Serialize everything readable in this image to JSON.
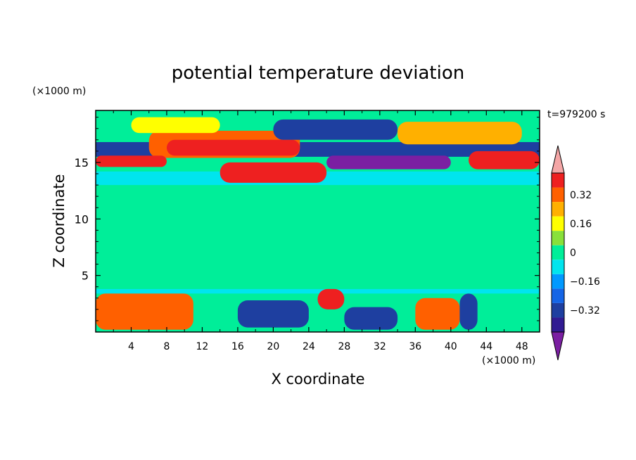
{
  "chart_data": {
    "type": "heatmap",
    "title": "potential temperature deviation",
    "xlabel": "X coordinate",
    "ylabel": "Z coordinate",
    "x_unit": "(×1000 m)",
    "y_unit": "(×1000 m)",
    "time_label": "t=979200 s",
    "xlim": [
      0,
      50
    ],
    "ylim": [
      0,
      19.6
    ],
    "x_ticks": [
      "4",
      "8",
      "12",
      "16",
      "20",
      "24",
      "28",
      "32",
      "36",
      "40",
      "44",
      "48"
    ],
    "y_ticks": [
      "5",
      "10",
      "15"
    ],
    "colorbar": {
      "levels": [
        -0.48,
        -0.4,
        -0.32,
        -0.24,
        -0.16,
        -0.08,
        0,
        0.08,
        0.16,
        0.24,
        0.32,
        0.4,
        0.48
      ],
      "tick_labels": [
        "0.32",
        "0.16",
        "0",
        "−0.16",
        "−0.32"
      ],
      "tick_values": [
        0.32,
        0.16,
        0,
        -0.16,
        -0.32
      ],
      "colors": [
        "#7b1fa2",
        "#311b92",
        "#1e3fa0",
        "#1565e6",
        "#0099ff",
        "#00e5ee",
        "#00ee99",
        "#88e03a",
        "#ffff00",
        "#ffb000",
        "#ff6000",
        "#ee2020",
        "#f4a6a6"
      ]
    },
    "field_regions": [
      {
        "x": [
          0,
          50
        ],
        "z": [
          0,
          19.6
        ],
        "value": 0.04
      },
      {
        "x": [
          0,
          50
        ],
        "z": [
          13.0,
          14.2
        ],
        "value": -0.08
      },
      {
        "x": [
          0,
          50
        ],
        "z": [
          3.4,
          3.8
        ],
        "value": -0.12
      },
      {
        "x": [
          0,
          50
        ],
        "z": [
          15.5,
          16.8
        ],
        "value": -0.28
      },
      {
        "x": [
          6,
          23
        ],
        "z": [
          15.4,
          17.8
        ],
        "value": 0.28
      },
      {
        "x": [
          0,
          8
        ],
        "z": [
          14.6,
          15.6
        ],
        "value": 0.44
      },
      {
        "x": [
          8,
          23
        ],
        "z": [
          15.6,
          17.0
        ],
        "value": 0.44
      },
      {
        "x": [
          14,
          26
        ],
        "z": [
          13.2,
          15.0
        ],
        "value": 0.44
      },
      {
        "x": [
          20,
          34
        ],
        "z": [
          17.0,
          18.8
        ],
        "value": -0.32
      },
      {
        "x": [
          26,
          40
        ],
        "z": [
          14.4,
          15.6
        ],
        "value": -0.44
      },
      {
        "x": [
          42,
          50
        ],
        "z": [
          14.4,
          16.0
        ],
        "value": 0.44
      },
      {
        "x": [
          43,
          47
        ],
        "z": [
          16.4,
          17.6
        ],
        "value": -0.32
      },
      {
        "x": [
          34,
          48
        ],
        "z": [
          16.6,
          18.6
        ],
        "value": 0.24
      },
      {
        "x": [
          4,
          14
        ],
        "z": [
          17.6,
          19.0
        ],
        "value": 0.16
      },
      {
        "x": [
          0,
          11
        ],
        "z": [
          0.2,
          3.4
        ],
        "value": 0.28
      },
      {
        "x": [
          25,
          28
        ],
        "z": [
          2.0,
          3.8
        ],
        "value": 0.44
      },
      {
        "x": [
          36,
          41
        ],
        "z": [
          0.2,
          3.0
        ],
        "value": 0.36
      },
      {
        "x": [
          41,
          43
        ],
        "z": [
          0.2,
          3.4
        ],
        "value": -0.36
      },
      {
        "x": [
          16,
          24
        ],
        "z": [
          0.4,
          2.8
        ],
        "value": -0.3
      },
      {
        "x": [
          28,
          34
        ],
        "z": [
          0.2,
          2.2
        ],
        "value": -0.36
      }
    ]
  }
}
